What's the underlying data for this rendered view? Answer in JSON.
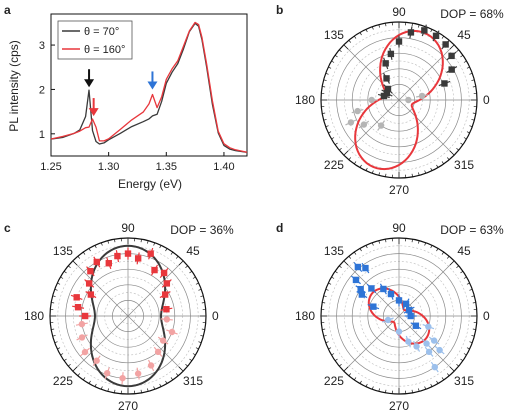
{
  "figure": {
    "panels": [
      {
        "letter": "a"
      },
      {
        "letter": "b",
        "dop": "DOP = 68%"
      },
      {
        "letter": "c",
        "dop": "DOP = 36%"
      },
      {
        "letter": "d",
        "dop": "DOP = 63%"
      }
    ],
    "polar_angle_labels": [
      "90",
      "45",
      "0",
      "315",
      "270",
      "225",
      "180",
      "135"
    ]
  },
  "colors": {
    "black_series": "#3a3a3a",
    "red_series": "#e8373c",
    "black_arrow": "#111111",
    "red_arrow": "#e8373c",
    "blue_arrow": "#2e74d6",
    "b_points_primary": "#111111",
    "b_points_secondary": "#b5b5b5",
    "b_fit": "#e8373c",
    "c_points_primary": "#e8373c",
    "c_points_secondary": "#f2a3a3",
    "c_fit": "#111111",
    "d_points_primary": "#2e74d6",
    "d_points_secondary": "#9cc0ec",
    "d_fit": "#e8373c"
  },
  "chart_data": [
    {
      "panel": "a",
      "type": "line",
      "xlabel": "Energy (eV)",
      "ylabel": "PL intensity (cps)",
      "xlim": [
        1.25,
        1.42
      ],
      "ylim": [
        0.5,
        3.7
      ],
      "x_ticks": [
        1.25,
        1.3,
        1.35,
        1.4
      ],
      "y_ticks": [
        1,
        2,
        3
      ],
      "legend_position": "top-left",
      "x": [
        1.25,
        1.26,
        1.27,
        1.275,
        1.28,
        1.283,
        1.286,
        1.289,
        1.292,
        1.296,
        1.3,
        1.31,
        1.32,
        1.33,
        1.335,
        1.338,
        1.342,
        1.346,
        1.35,
        1.355,
        1.36,
        1.365,
        1.37,
        1.375,
        1.378,
        1.381,
        1.385,
        1.39,
        1.395,
        1.4,
        1.405,
        1.41,
        1.42
      ],
      "series": [
        {
          "name": "θ = 70°",
          "color": "black",
          "values": [
            0.88,
            0.9,
            0.98,
            1.05,
            1.35,
            1.95,
            1.05,
            0.82,
            0.78,
            0.82,
            0.9,
            1.05,
            1.2,
            1.3,
            1.35,
            1.4,
            1.42,
            1.7,
            2.1,
            2.35,
            2.55,
            2.9,
            3.3,
            3.5,
            3.45,
            3.15,
            2.55,
            1.7,
            1.05,
            0.75,
            0.65,
            0.6,
            0.55
          ]
        },
        {
          "name": "θ = 160°",
          "color": "red",
          "values": [
            0.85,
            0.9,
            0.97,
            1.03,
            1.12,
            1.15,
            1.35,
            1.18,
            0.88,
            0.88,
            0.92,
            1.12,
            1.32,
            1.48,
            1.65,
            1.85,
            1.55,
            1.8,
            2.2,
            2.45,
            2.65,
            3.0,
            3.35,
            3.55,
            3.5,
            3.2,
            2.6,
            1.75,
            1.05,
            0.75,
            0.65,
            0.6,
            0.55
          ]
        }
      ],
      "annotations": [
        {
          "type": "arrow",
          "color": "black",
          "x": 1.283,
          "y_tip": 2.05
        },
        {
          "type": "arrow",
          "color": "red",
          "x": 1.287,
          "y_tip": 1.4
        },
        {
          "type": "arrow",
          "color": "blue",
          "x": 1.338,
          "y_tip": 2.0
        }
      ]
    },
    {
      "panel": "b",
      "type": "scatter",
      "coordinates": "polar",
      "angle_unit": "deg",
      "r_max": 1.0,
      "fit": {
        "color": "red",
        "dop": 0.68,
        "orientation_deg": 70,
        "max": 0.92
      },
      "points": [
        {
          "angle": 20,
          "r": 0.62,
          "color": "black"
        },
        {
          "angle": 30,
          "r": 0.78,
          "color": "black"
        },
        {
          "angle": 40,
          "r": 0.88,
          "color": "black"
        },
        {
          "angle": 50,
          "r": 0.93,
          "color": "black"
        },
        {
          "angle": 60,
          "r": 0.95,
          "color": "black"
        },
        {
          "angle": 70,
          "r": 0.95,
          "color": "black"
        },
        {
          "angle": 80,
          "r": 0.88,
          "color": "black"
        },
        {
          "angle": 90,
          "r": 0.75,
          "color": "black"
        },
        {
          "angle": 100,
          "r": 0.6,
          "color": "black"
        },
        {
          "angle": 110,
          "r": 0.5,
          "color": "black"
        },
        {
          "angle": 120,
          "r": 0.32,
          "color": "black"
        },
        {
          "angle": 135,
          "r": 0.2,
          "color": "black"
        },
        {
          "angle": 150,
          "r": 0.18,
          "color": "black"
        },
        {
          "angle": 165,
          "r": 0.2,
          "color": "black"
        },
        {
          "angle": 180,
          "r": 0.35,
          "color": "grey"
        },
        {
          "angle": 195,
          "r": 0.55,
          "color": "grey"
        },
        {
          "angle": 205,
          "r": 0.68,
          "color": "grey"
        },
        {
          "angle": 215,
          "r": 0.55,
          "color": "grey"
        },
        {
          "angle": 235,
          "r": 0.4,
          "color": "grey"
        },
        {
          "angle": 0,
          "r": 0.12,
          "color": "grey"
        },
        {
          "angle": 10,
          "r": 0.3,
          "color": "grey"
        }
      ]
    },
    {
      "panel": "c",
      "type": "scatter",
      "coordinates": "polar",
      "angle_unit": "deg",
      "r_max": 1.0,
      "fit": {
        "color": "black",
        "dop": 0.36,
        "orientation_deg": 90,
        "max": 0.9
      },
      "points": [
        {
          "angle": 90,
          "r": 0.8,
          "color": "red"
        },
        {
          "angle": 100,
          "r": 0.78,
          "color": "red"
        },
        {
          "angle": 110,
          "r": 0.72,
          "color": "red"
        },
        {
          "angle": 120,
          "r": 0.8,
          "color": "red"
        },
        {
          "angle": 130,
          "r": 0.75,
          "color": "red"
        },
        {
          "angle": 140,
          "r": 0.65,
          "color": "red"
        },
        {
          "angle": 150,
          "r": 0.55,
          "color": "red"
        },
        {
          "angle": 160,
          "r": 0.7,
          "color": "red"
        },
        {
          "angle": 170,
          "r": 0.65,
          "color": "red"
        },
        {
          "angle": 180,
          "r": 0.55,
          "color": "red"
        },
        {
          "angle": 80,
          "r": 0.75,
          "color": "red"
        },
        {
          "angle": 70,
          "r": 0.85,
          "color": "red"
        },
        {
          "angle": 60,
          "r": 0.68,
          "color": "red"
        },
        {
          "angle": 50,
          "r": 0.72,
          "color": "red"
        },
        {
          "angle": 40,
          "r": 0.65,
          "color": "red"
        },
        {
          "angle": 30,
          "r": 0.55,
          "color": "red"
        },
        {
          "angle": 10,
          "r": 0.5,
          "color": "red"
        },
        {
          "angle": 190,
          "r": 0.6,
          "color": "pink"
        },
        {
          "angle": 205,
          "r": 0.65,
          "color": "pink"
        },
        {
          "angle": 220,
          "r": 0.72,
          "color": "pink"
        },
        {
          "angle": 235,
          "r": 0.7,
          "color": "pink"
        },
        {
          "angle": 250,
          "r": 0.78,
          "color": "pink"
        },
        {
          "angle": 265,
          "r": 0.8,
          "color": "pink"
        },
        {
          "angle": 280,
          "r": 0.75,
          "color": "pink"
        },
        {
          "angle": 295,
          "r": 0.7,
          "color": "pink"
        },
        {
          "angle": 310,
          "r": 0.6,
          "color": "pink"
        },
        {
          "angle": 325,
          "r": 0.55,
          "color": "pink"
        },
        {
          "angle": 340,
          "r": 0.6,
          "color": "pink"
        },
        {
          "angle": 355,
          "r": 0.5,
          "color": "pink"
        }
      ]
    },
    {
      "panel": "d",
      "type": "scatter",
      "coordinates": "polar",
      "angle_unit": "deg",
      "r_max": 1.0,
      "fit": {
        "color": "red",
        "dop": 0.63,
        "orientation_deg": 140,
        "max": 0.45
      },
      "points": [
        {
          "angle": 125,
          "r": 0.75,
          "color": "blue"
        },
        {
          "angle": 130,
          "r": 0.82,
          "color": "blue"
        },
        {
          "angle": 140,
          "r": 0.72,
          "color": "blue"
        },
        {
          "angle": 145,
          "r": 0.6,
          "color": "blue"
        },
        {
          "angle": 150,
          "r": 0.55,
          "color": "blue"
        },
        {
          "angle": 135,
          "r": 0.5,
          "color": "blue"
        },
        {
          "angle": 120,
          "r": 0.4,
          "color": "blue"
        },
        {
          "angle": 160,
          "r": 0.35,
          "color": "blue"
        },
        {
          "angle": 110,
          "r": 0.3,
          "color": "blue"
        },
        {
          "angle": 90,
          "r": 0.2,
          "color": "blue"
        },
        {
          "angle": 60,
          "r": 0.18,
          "color": "blue"
        },
        {
          "angle": 30,
          "r": 0.15,
          "color": "blue"
        },
        {
          "angle": 0,
          "r": 0.15,
          "color": "blue"
        },
        {
          "angle": 330,
          "r": 0.25,
          "color": "blue"
        },
        {
          "angle": 315,
          "r": 0.5,
          "color": "lightblue"
        },
        {
          "angle": 310,
          "r": 0.6,
          "color": "lightblue"
        },
        {
          "angle": 320,
          "r": 0.68,
          "color": "lightblue"
        },
        {
          "angle": 325,
          "r": 0.55,
          "color": "lightblue"
        },
        {
          "angle": 305,
          "r": 0.8,
          "color": "lightblue"
        },
        {
          "angle": 300,
          "r": 0.45,
          "color": "lightblue"
        },
        {
          "angle": 340,
          "r": 0.4,
          "color": "lightblue"
        },
        {
          "angle": 290,
          "r": 0.35,
          "color": "lightblue"
        },
        {
          "angle": 270,
          "r": 0.2,
          "color": "lightblue"
        },
        {
          "angle": 200,
          "r": 0.15,
          "color": "lightblue"
        }
      ]
    }
  ]
}
